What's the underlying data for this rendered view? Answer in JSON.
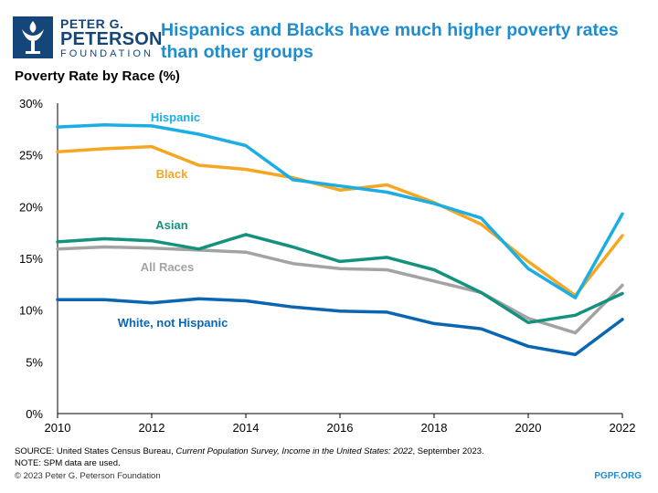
{
  "logo": {
    "line1": "PETER G.",
    "line2": "PETERSON",
    "line3": "FOUNDATION"
  },
  "headline": "Hispanics and Blacks have much higher poverty rates than other groups",
  "subtitle": "Poverty Rate by Race (%)",
  "footer": {
    "source_prefix": "SOURCE: United States Census Bureau, ",
    "source_title": "Current Population Survey, Income in the United States: 2022",
    "source_suffix": ", September 2023.",
    "note": "NOTE: SPM data are used.",
    "copyright": "© 2023 Peter G. Peterson Foundation",
    "site": "PGPF.ORG"
  },
  "colors": {
    "brand_navy": "#15467a",
    "headline_blue": "#1e8dcf"
  },
  "chart_data": {
    "type": "line",
    "title": "Poverty Rate by Race (%)",
    "x": [
      2010,
      2011,
      2012,
      2013,
      2014,
      2015,
      2016,
      2017,
      2018,
      2019,
      2020,
      2021,
      2022
    ],
    "x_ticks": [
      "2010",
      "2012",
      "2014",
      "2016",
      "2018",
      "2020",
      "2022"
    ],
    "y_ticks": [
      "0%",
      "5%",
      "10%",
      "15%",
      "20%",
      "25%",
      "30%"
    ],
    "ylim": [
      0,
      30
    ],
    "xlim": [
      2010,
      2022
    ],
    "grid": false,
    "series": [
      {
        "name": "Hispanic",
        "color": "#1aaee5",
        "values": [
          27.7,
          27.9,
          27.8,
          27.0,
          25.9,
          22.6,
          22.0,
          21.4,
          20.3,
          18.9,
          14.0,
          11.2,
          19.3
        ]
      },
      {
        "name": "Black",
        "color": "#f5a623",
        "values": [
          25.3,
          25.6,
          25.8,
          24.0,
          23.6,
          22.8,
          21.6,
          22.1,
          20.4,
          18.3,
          14.7,
          11.4,
          17.2
        ]
      },
      {
        "name": "Asian",
        "color": "#14927e",
        "values": [
          16.6,
          16.9,
          16.7,
          15.9,
          17.3,
          16.1,
          14.7,
          15.1,
          13.9,
          11.7,
          8.8,
          9.5,
          11.6
        ]
      },
      {
        "name": "All Races",
        "color": "#a3a3a3",
        "values": [
          15.9,
          16.1,
          16.0,
          15.8,
          15.6,
          14.5,
          14.0,
          13.9,
          12.8,
          11.7,
          9.2,
          7.8,
          12.4
        ]
      },
      {
        "name": "White, not Hispanic",
        "color": "#0b66b2",
        "values": [
          11.0,
          11.0,
          10.7,
          11.1,
          10.9,
          10.3,
          9.9,
          9.8,
          8.7,
          8.2,
          6.5,
          5.7,
          9.1
        ]
      }
    ]
  }
}
